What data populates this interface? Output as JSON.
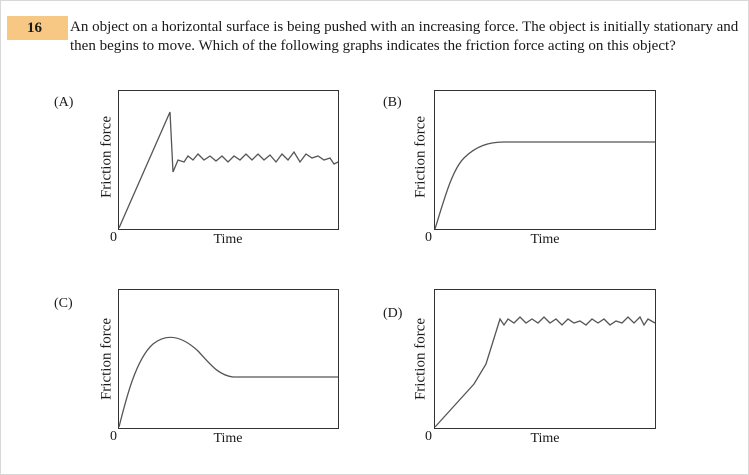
{
  "question": {
    "number": "16",
    "text": "An object on a horizontal surface is being pushed with an increasing force. The object is initially stationary and then begins to move. Which of the following graphs indicates the friction force acting on this object?"
  },
  "options": [
    {
      "label": "(A)",
      "ylabel": "Friction force",
      "xlabel": "Time",
      "origin": "0",
      "shape": "peak-then-fluctuating"
    },
    {
      "label": "(B)",
      "ylabel": "Friction force",
      "xlabel": "Time",
      "origin": "0",
      "shape": "rise-then-flat"
    },
    {
      "label": "(C)",
      "ylabel": "Friction force",
      "xlabel": "Time",
      "origin": "0",
      "shape": "hump-then-flat"
    },
    {
      "label": "(D)",
      "ylabel": "Friction force",
      "xlabel": "Time",
      "origin": "0",
      "shape": "linear-rise-then-fluctuating"
    }
  ]
}
